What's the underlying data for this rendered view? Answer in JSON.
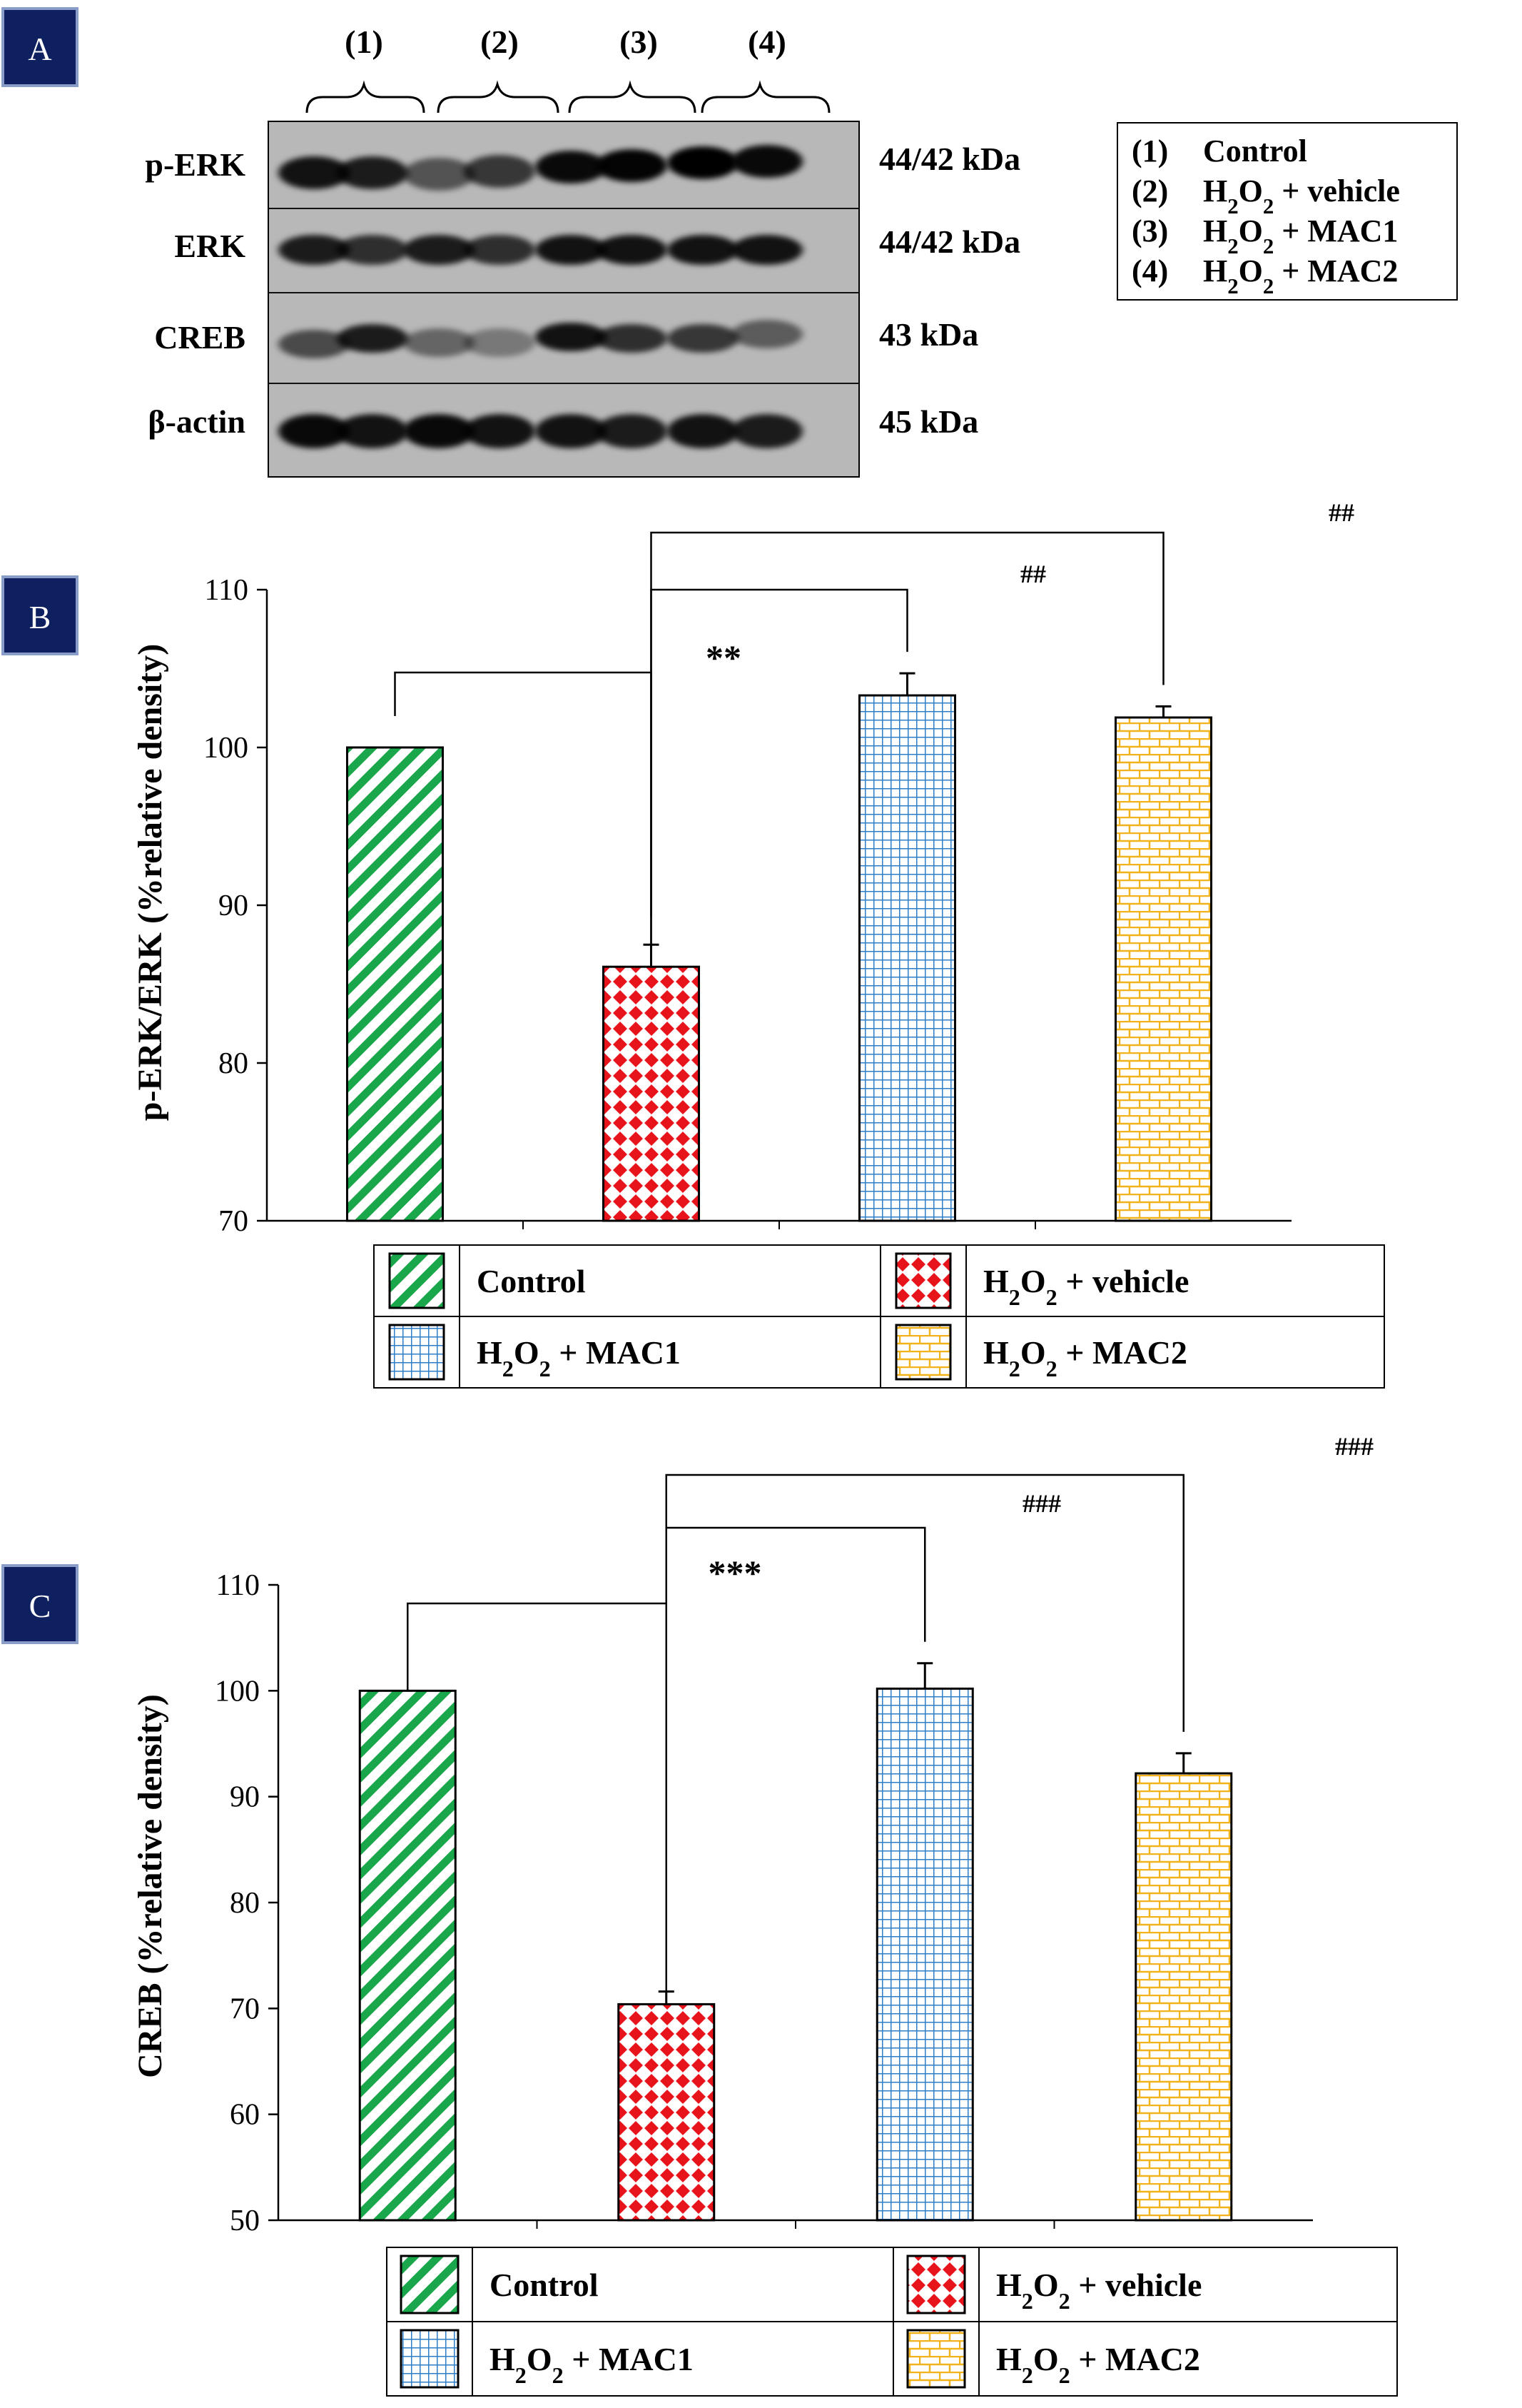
{
  "panels": {
    "a": {
      "letter": "A"
    },
    "b": {
      "letter": "B"
    },
    "c": {
      "letter": "C"
    }
  },
  "blot": {
    "lane_groups": [
      "(1)",
      "(2)",
      "(3)",
      "(4)"
    ],
    "rows": [
      {
        "protein": "p-ERK",
        "size": "44/42 kDa"
      },
      {
        "protein": "ERK",
        "size": "44/42 kDa"
      },
      {
        "protein": "CREB",
        "size": "43 kDa"
      },
      {
        "protein": "β-actin",
        "size": "45 kDa"
      }
    ],
    "key": [
      {
        "num": "(1)",
        "label": "Control"
      },
      {
        "num": "(2)",
        "label": "H2O2 + vehicle"
      },
      {
        "num": "(3)",
        "label": "H2O2 + MAC1"
      },
      {
        "num": "(4)",
        "label": "H2O2 + MAC2"
      }
    ]
  },
  "colors": {
    "control": "#1aa64a",
    "vehicle": "#e8141c",
    "mac1": "#2f7ec8",
    "mac2": "#f2b21c",
    "badge": "#0f2060",
    "badge_border": "#8a9cc8"
  },
  "legend": {
    "entries": [
      {
        "key": "control",
        "text": "Control"
      },
      {
        "key": "vehicle",
        "text": "H2O2 + vehicle"
      },
      {
        "key": "mac1",
        "text": "H2O2 + MAC1"
      },
      {
        "key": "mac2",
        "text": "H2O2 + MAC2"
      }
    ]
  },
  "chart_data": [
    {
      "panel": "B",
      "type": "bar",
      "title": "",
      "xlabel": "",
      "ylabel": "p-ERK/ERK (%relative density)",
      "categories": [
        "Control",
        "H2O2 + vehicle",
        "H2O2 + MAC1",
        "H2O2 + MAC2"
      ],
      "values": [
        100,
        86.1,
        103.3,
        101.9
      ],
      "errors": [
        0,
        1.4,
        1.4,
        0.7
      ],
      "ylim": [
        70,
        110
      ],
      "yticks": [
        70,
        80,
        90,
        100,
        110
      ],
      "annotations": [
        {
          "from": 0,
          "to": 1,
          "text": "**"
        },
        {
          "from": 1,
          "to": 2,
          "text": "##"
        },
        {
          "from": 1,
          "to": 3,
          "text": "##"
        }
      ]
    },
    {
      "panel": "C",
      "type": "bar",
      "title": "",
      "xlabel": "",
      "ylabel": "CREB (%relative density)",
      "categories": [
        "Control",
        "H2O2 + vehicle",
        "H2O2 + MAC1",
        "H2O2 + MAC2"
      ],
      "values": [
        100,
        70.4,
        100.2,
        92.2
      ],
      "errors": [
        0,
        1.2,
        2.4,
        1.9
      ],
      "ylim": [
        50,
        110
      ],
      "yticks": [
        50,
        60,
        70,
        80,
        90,
        100,
        110
      ],
      "annotations": [
        {
          "from": 0,
          "to": 1,
          "text": "***"
        },
        {
          "from": 1,
          "to": 2,
          "text": "###"
        },
        {
          "from": 1,
          "to": 3,
          "text": "###"
        }
      ]
    }
  ]
}
